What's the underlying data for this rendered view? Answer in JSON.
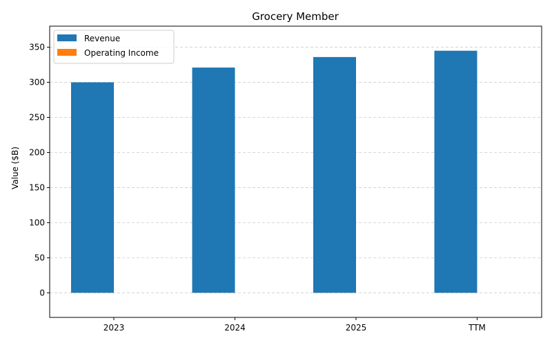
{
  "chart_data": {
    "type": "bar",
    "title": "Grocery Member",
    "xlabel": "",
    "ylabel": "Value ($B)",
    "categories": [
      "2023",
      "2024",
      "2025",
      "TTM"
    ],
    "series": [
      {
        "name": "Revenue",
        "values": [
          300,
          321,
          336,
          345
        ],
        "color": "#1f77b4"
      },
      {
        "name": "Operating Income",
        "values": [
          0,
          0,
          0,
          0
        ],
        "color": "#ff7f0e"
      }
    ],
    "ylim": [
      -35,
      380
    ],
    "yticks": [
      0,
      50,
      100,
      150,
      200,
      250,
      300,
      350
    ],
    "grid": "y-dashed",
    "legend": "top-left"
  }
}
